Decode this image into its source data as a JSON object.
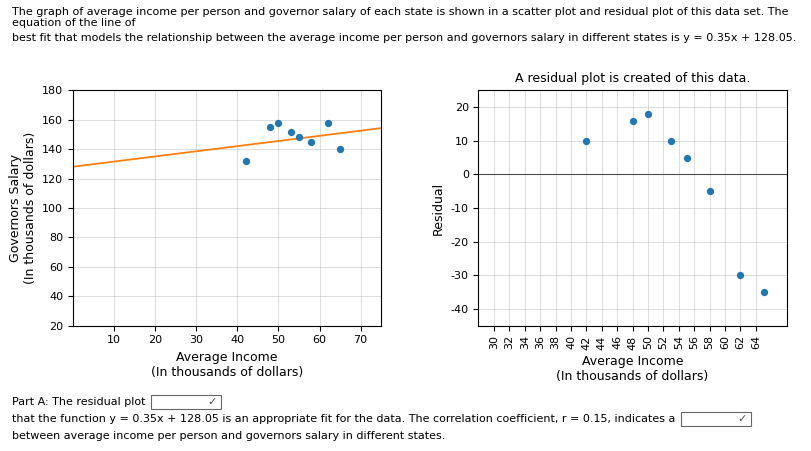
{
  "chart_data": [
    {
      "type": "scatter",
      "title": "The graph of average income per person and governor salary of each state is shown in a scatter plot and residual plot of this data set. The equation of the line of",
      "subtitle": "best fit that models the relationship between the average income per person and governors salary in different states is y = 0.35x + 128.05.",
      "x": [
        42,
        48,
        50,
        53,
        55,
        58,
        62,
        65
      ],
      "values": [
        132,
        155,
        158,
        152,
        148,
        145,
        158,
        140
      ],
      "fit_line": {
        "x": [
          0,
          75
        ],
        "values": [
          128.05,
          154.3
        ]
      },
      "xlabel": "Average Income\n(In thousands of dollars)",
      "ylabel": "Governors Salary\n(In thousands of dollars)",
      "xlim": [
        0,
        75
      ],
      "ylim": [
        20,
        180
      ],
      "xticks": [
        10,
        20,
        30,
        40,
        50,
        60,
        70
      ],
      "yticks": [
        20,
        40,
        60,
        80,
        100,
        120,
        140,
        160,
        180
      ],
      "grid": true
    },
    {
      "type": "scatter",
      "title": "A residual plot is created of this data.",
      "x": [
        42,
        48,
        50,
        53,
        55,
        58,
        62,
        65
      ],
      "values": [
        10,
        16,
        18,
        10,
        5,
        -5,
        -30,
        -35
      ],
      "hline": 0,
      "xlabel": "Average Income\n(In thousands of dollars)",
      "ylabel": "Residual",
      "xlim": [
        28,
        68
      ],
      "ylim": [
        -45,
        25
      ],
      "xticks": [
        30,
        32,
        34,
        36,
        38,
        40,
        42,
        44,
        46,
        48,
        50,
        52,
        54,
        56,
        58,
        60,
        62,
        64
      ],
      "yticks": [
        -40,
        -30,
        -20,
        -10,
        0,
        10,
        20
      ],
      "grid": true,
      "annotations": [
        {
          "text": "Part A: The residual plot",
          "dropdown": false
        },
        {
          "text": "✓",
          "dropdown": true
        },
        {
          "text": "that the function y = 0.35x + 128.05 is an appropriate fit for the data. The correlation coefficient, r = 0.15, indicates a",
          "dropdown": false
        },
        {
          "text": "✓",
          "dropdown": true
        },
        {
          "text": "between average income per person and governors salary in different states.",
          "dropdown": false
        }
      ]
    }
  ]
}
